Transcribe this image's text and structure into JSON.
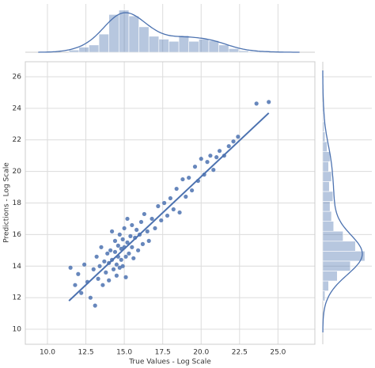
{
  "chart_data": {
    "type": "scatter",
    "x_label": "True Values - Log Scale",
    "y_label": "Predictions - Log Scale",
    "xlim": [
      8.56,
      27.4
    ],
    "ylim": [
      9.05,
      26.95
    ],
    "xticks": [
      {
        "value": 10,
        "label": "10.0"
      },
      12.5,
      {
        "value": 15,
        "label": "15.0"
      },
      17.5,
      {
        "value": 20,
        "label": "20.0"
      },
      22.5,
      {
        "value": 25,
        "label": "25.0"
      }
    ],
    "yticks": [
      10,
      12,
      14,
      16,
      18,
      20,
      22,
      24,
      26
    ],
    "grid": true,
    "series": [
      {
        "color": "#4c72b0",
        "x": [
          11.5,
          11.8,
          12.0,
          12.2,
          12.4,
          12.6,
          12.8,
          13.0,
          13.1,
          13.2,
          13.3,
          13.4,
          13.5,
          13.6,
          13.7,
          13.8,
          13.9,
          14.0,
          14.0,
          14.1,
          14.2,
          14.2,
          14.3,
          14.4,
          14.4,
          14.5,
          14.5,
          14.6,
          14.6,
          14.7,
          14.7,
          14.8,
          14.8,
          14.9,
          14.9,
          15.0,
          15.0,
          15.1,
          15.1,
          15.2,
          15.2,
          15.3,
          15.4,
          15.5,
          15.5,
          15.6,
          15.7,
          15.8,
          15.9,
          16.0,
          16.1,
          16.2,
          16.3,
          16.5,
          16.6,
          16.8,
          17.0,
          17.2,
          17.4,
          17.6,
          17.8,
          18.0,
          18.2,
          18.4,
          18.6,
          18.8,
          19.0,
          19.2,
          19.4,
          19.6,
          19.8,
          20.0,
          20.2,
          20.4,
          20.6,
          20.8,
          21.0,
          21.2,
          21.5,
          21.8,
          22.1,
          22.4,
          23.6,
          24.4
        ],
        "values": [
          13.9,
          12.8,
          13.5,
          12.3,
          14.1,
          13.0,
          12.0,
          13.8,
          11.5,
          14.6,
          13.2,
          14.0,
          15.2,
          12.8,
          14.3,
          13.6,
          14.8,
          14.2,
          13.1,
          15.0,
          14.4,
          16.2,
          13.8,
          14.9,
          15.6,
          14.1,
          13.4,
          15.3,
          14.6,
          16.0,
          13.9,
          15.1,
          14.4,
          15.7,
          14.0,
          15.2,
          16.4,
          14.6,
          13.3,
          15.5,
          17.0,
          14.8,
          15.9,
          15.2,
          16.6,
          14.5,
          15.8,
          16.3,
          15.0,
          16.0,
          16.8,
          15.4,
          17.3,
          16.2,
          15.6,
          17.0,
          16.4,
          17.8,
          16.9,
          18.0,
          17.2,
          18.3,
          17.6,
          18.9,
          17.4,
          19.5,
          18.4,
          19.6,
          18.8,
          20.3,
          19.4,
          20.8,
          19.8,
          20.6,
          21.0,
          20.1,
          20.9,
          21.3,
          21.0,
          21.6,
          21.9,
          22.2,
          24.3,
          24.4
        ]
      }
    ],
    "regression": {
      "color": "#4c72b0",
      "x": [
        11.4,
        24.4
      ],
      "values": [
        11.8,
        23.7
      ]
    },
    "marginal_x": {
      "color": "#4c72b0",
      "bins": [
        11.4,
        12.05,
        12.7,
        13.35,
        14.0,
        14.65,
        15.3,
        15.95,
        16.6,
        17.25,
        17.9,
        18.55,
        19.2,
        19.85,
        20.5,
        21.15,
        21.8,
        22.45,
        23.1,
        23.75,
        24.4
      ],
      "counts": [
        3,
        7,
        10,
        25,
        52,
        58,
        50,
        35,
        22,
        18,
        15,
        23,
        15,
        18,
        16,
        10,
        5,
        2,
        1,
        1
      ]
    },
    "marginal_y": {
      "color": "#4c72b0",
      "bins": [
        11.8,
        12.43,
        13.06,
        13.69,
        14.32,
        14.95,
        15.58,
        16.21,
        16.84,
        17.47,
        18.1,
        18.73,
        19.36,
        19.99,
        20.62,
        21.25,
        21.88,
        22.51,
        23.14,
        23.77,
        24.4
      ],
      "counts": [
        3,
        8,
        20,
        38,
        58,
        45,
        28,
        15,
        12,
        10,
        14,
        9,
        12,
        8,
        10,
        6,
        3,
        2,
        1,
        1
      ]
    }
  }
}
